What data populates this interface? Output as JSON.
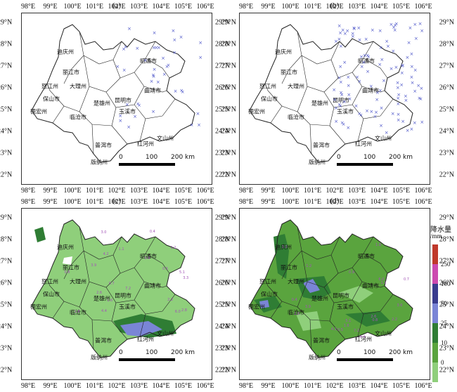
{
  "panels": [
    {
      "label": "(a)"
    },
    {
      "label": "(b)"
    },
    {
      "label": "(c)"
    },
    {
      "label": "(d)"
    }
  ],
  "axes": {
    "lon_labels": [
      "98°E",
      "99°E",
      "100°E",
      "101°E",
      "102°E",
      "103°E",
      "104°E",
      "105°E",
      "106°E"
    ],
    "lat_labels": [
      "29°N",
      "28°N",
      "27°N",
      "26°N",
      "25°N",
      "24°N",
      "23°N",
      "22°N"
    ]
  },
  "cities": [
    "迪庆州",
    "丽江市",
    "怒江州",
    "大理州",
    "保山市",
    "德宏州",
    "临沧市",
    "楚雄州",
    "昆明市",
    "曲靖市",
    "昭通市",
    "玉溪市",
    "红河州",
    "文山州",
    "普洱市",
    "版纳州"
  ],
  "scale_bar": {
    "zero": "0",
    "mid": "100",
    "end": "200 km"
  },
  "station_marker": "×",
  "legend": {
    "title": "降水量",
    "unit": "/mm",
    "levels": [
      "250",
      "100",
      "50",
      "25",
      "10",
      "0"
    ],
    "colors": [
      "#c0392b",
      "#cc4ab0",
      "#393c8e",
      "#7a85d6",
      "#2f7d34",
      "#5aa43e",
      "#8fcf7b"
    ]
  },
  "rain_labels": [
    "4.2",
    "5.1",
    "0.9",
    "3.3",
    "0.7",
    "2.8",
    "1.6",
    "0.4",
    "6.0",
    "1.2",
    "3.9",
    "2.2",
    "0.5",
    "4.4",
    "1.8",
    "7.2",
    "2.6",
    "0.8",
    "3.0",
    "1.1"
  ],
  "colors": {
    "border": "#222222",
    "station": "#4b54c8",
    "label": "#a355b7",
    "green_light": "#8fcf7b",
    "green_mid": "#5aa43e",
    "green_dark": "#2f7d34",
    "blue_light": "#7a85d6",
    "blue_dark": "#393c8e"
  }
}
